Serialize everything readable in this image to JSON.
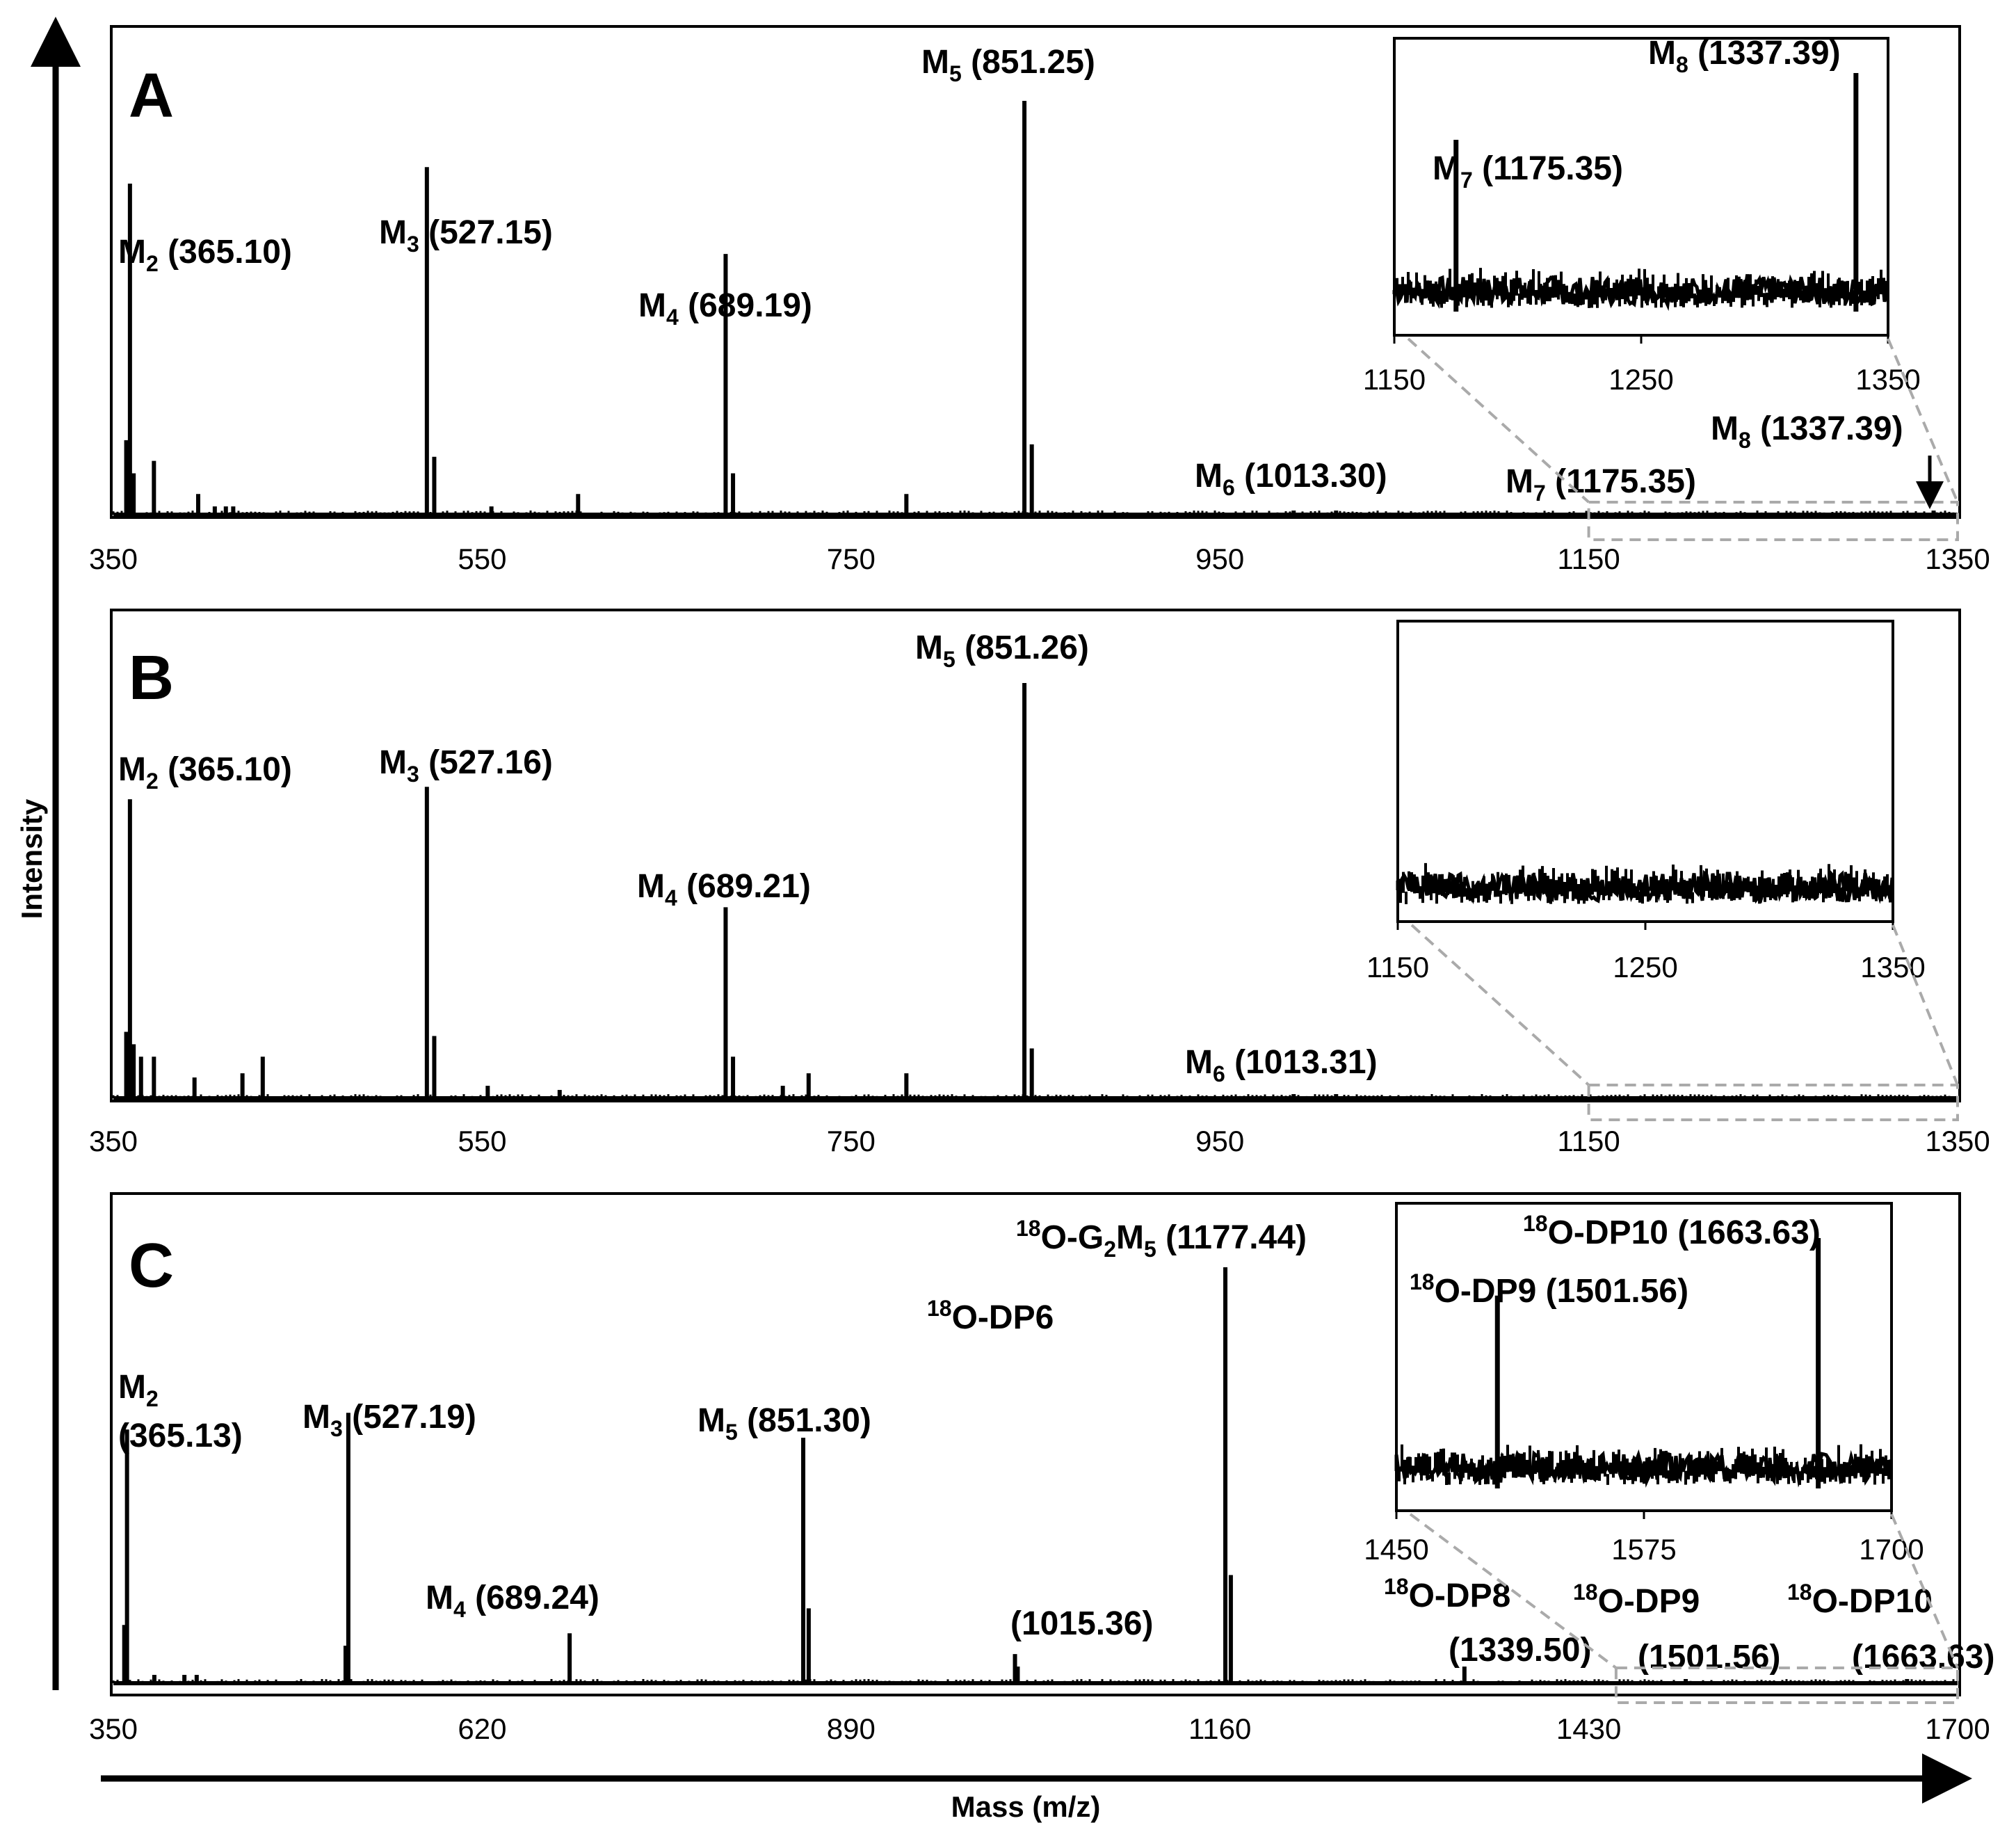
{
  "axis_titles": {
    "y": "Intensity",
    "x": "Mass (m/z)"
  },
  "chart_data": [
    {
      "type": "bar",
      "panel": "A",
      "xlim": [
        350,
        1350
      ],
      "xticks": [
        "350",
        "550",
        "750",
        "950",
        "1150",
        "1350"
      ],
      "peaks": [
        {
          "x": 359,
          "h": 0.8
        },
        {
          "x": 357,
          "h": 0.18
        },
        {
          "x": 361,
          "h": 0.1
        },
        {
          "x": 372,
          "h": 0.13
        },
        {
          "x": 396,
          "h": 0.05
        },
        {
          "x": 405,
          "h": 0.02
        },
        {
          "x": 411,
          "h": 0.02
        },
        {
          "x": 415,
          "h": 0.02
        },
        {
          "x": 520,
          "h": 0.84
        },
        {
          "x": 524,
          "h": 0.14
        },
        {
          "x": 555,
          "h": 0.02
        },
        {
          "x": 602,
          "h": 0.05
        },
        {
          "x": 682,
          "h": 0.63
        },
        {
          "x": 686,
          "h": 0.1
        },
        {
          "x": 780,
          "h": 0.05
        },
        {
          "x": 844,
          "h": 1.0
        },
        {
          "x": 848,
          "h": 0.17
        },
        {
          "x": 990,
          "h": 0.01
        },
        {
          "x": 1013,
          "h": 0.01
        },
        {
          "x": 1337,
          "h": 0.01
        }
      ],
      "labels": [
        {
          "name": "M",
          "sub": "2",
          "mz": "(365.10)"
        },
        {
          "name": "M",
          "sub": "3",
          "mz": "(527.15)"
        },
        {
          "name": "M",
          "sub": "4",
          "mz": "(689.19)"
        },
        {
          "name": "M",
          "sub": "5",
          "mz": "(851.25)"
        },
        {
          "name": "M",
          "sub": "6",
          "mz": "(1013.30)"
        },
        {
          "name": "M",
          "sub": "7",
          "mz": "(1175.35)"
        },
        {
          "name": "M",
          "sub": "8",
          "mz": "(1337.39)"
        }
      ],
      "inset": {
        "xlim": [
          1150,
          1350
        ],
        "xticks": [
          "1150",
          "1250",
          "1350"
        ],
        "peaks": [
          {
            "x": 1175,
            "h": 0.72
          },
          {
            "x": 1337,
            "h": 1.0
          }
        ],
        "labels": [
          {
            "name": "M",
            "sub": "7",
            "mz": "(1175.35)"
          },
          {
            "name": "M",
            "sub": "8",
            "mz": "(1337.39)"
          }
        ]
      }
    },
    {
      "type": "bar",
      "panel": "B",
      "xlim": [
        350,
        1350
      ],
      "xticks": [
        "350",
        "550",
        "750",
        "950",
        "1150",
        "1350"
      ],
      "peaks": [
        {
          "x": 359,
          "h": 0.72
        },
        {
          "x": 357,
          "h": 0.16
        },
        {
          "x": 361,
          "h": 0.13
        },
        {
          "x": 365,
          "h": 0.1
        },
        {
          "x": 372,
          "h": 0.1
        },
        {
          "x": 394,
          "h": 0.05
        },
        {
          "x": 420,
          "h": 0.06
        },
        {
          "x": 431,
          "h": 0.1
        },
        {
          "x": 520,
          "h": 0.75
        },
        {
          "x": 524,
          "h": 0.15
        },
        {
          "x": 553,
          "h": 0.03
        },
        {
          "x": 592,
          "h": 0.02
        },
        {
          "x": 682,
          "h": 0.46
        },
        {
          "x": 686,
          "h": 0.1
        },
        {
          "x": 713,
          "h": 0.03
        },
        {
          "x": 727,
          "h": 0.06
        },
        {
          "x": 780,
          "h": 0.06
        },
        {
          "x": 844,
          "h": 1.0
        },
        {
          "x": 848,
          "h": 0.12
        },
        {
          "x": 990,
          "h": 0.01
        },
        {
          "x": 1013,
          "h": 0.01
        }
      ],
      "labels": [
        {
          "name": "M",
          "sub": "2",
          "mz": "(365.10)"
        },
        {
          "name": "M",
          "sub": "3",
          "mz": "(527.16)"
        },
        {
          "name": "M",
          "sub": "4",
          "mz": "(689.21)"
        },
        {
          "name": "M",
          "sub": "5",
          "mz": "(851.26)"
        },
        {
          "name": "M",
          "sub": "6",
          "mz": "(1013.31)"
        }
      ],
      "inset": {
        "xlim": [
          1150,
          1350
        ],
        "xticks": [
          "1150",
          "1250",
          "1350"
        ],
        "peaks": [],
        "labels": []
      }
    },
    {
      "type": "bar",
      "panel": "C",
      "xlim": [
        350,
        1700
      ],
      "xticks": [
        "350",
        "620",
        "890",
        "1160",
        "1430",
        "1700"
      ],
      "peaks": [
        {
          "x": 360,
          "h": 0.61
        },
        {
          "x": 358,
          "h": 0.14
        },
        {
          "x": 380,
          "h": 0.02
        },
        {
          "x": 402,
          "h": 0.02
        },
        {
          "x": 411,
          "h": 0.02
        },
        {
          "x": 522,
          "h": 0.65
        },
        {
          "x": 520,
          "h": 0.09
        },
        {
          "x": 684,
          "h": 0.12
        },
        {
          "x": 855,
          "h": 0.59
        },
        {
          "x": 859,
          "h": 0.18
        },
        {
          "x": 1010,
          "h": 0.07
        },
        {
          "x": 1012,
          "h": 0.04
        },
        {
          "x": 1164,
          "h": 1.0
        },
        {
          "x": 1168,
          "h": 0.26
        },
        {
          "x": 1339,
          "h": 0.04
        },
        {
          "x": 1501,
          "h": 0.01
        },
        {
          "x": 1663,
          "h": 0.01
        }
      ],
      "labels": [
        {
          "pre": "",
          "name": "M",
          "sub": "2",
          "mz": "(365.13)"
        },
        {
          "pre": "",
          "name": "M",
          "sub": "3",
          "mz": "(527.19)"
        },
        {
          "pre": "",
          "name": "M",
          "sub": "4",
          "mz": "(689.24)"
        },
        {
          "pre": "",
          "name": "M",
          "sub": "5",
          "mz": "(851.30)"
        },
        {
          "pre": "18",
          "name": "O-DP6",
          "sub": "",
          "mz": "(1015.36)"
        },
        {
          "pre": "18",
          "name": "O-G",
          "sub": "2",
          "name2": "M",
          "sub2": "5",
          "mz": "(1177.44)"
        },
        {
          "pre": "18",
          "name": "O-DP8",
          "sub": "",
          "mz": "(1339.50)"
        },
        {
          "pre": "18",
          "name": "O-DP9",
          "sub": "",
          "mz": "(1501.56)"
        },
        {
          "pre": "18",
          "name": "O-DP10",
          "sub": "",
          "mz": "(1663.63)"
        }
      ],
      "inset": {
        "xlim": [
          1450,
          1700
        ],
        "xticks": [
          "1450",
          "1575",
          "1700"
        ],
        "peaks": [
          {
            "x": 1501,
            "h": 0.77
          },
          {
            "x": 1663,
            "h": 1.0
          }
        ],
        "labels": [
          {
            "pre": "18",
            "name": "O-DP9",
            "mz": "(1501.56)"
          },
          {
            "pre": "18",
            "name": "O-DP10",
            "mz": "(1663.63)"
          }
        ]
      }
    }
  ]
}
